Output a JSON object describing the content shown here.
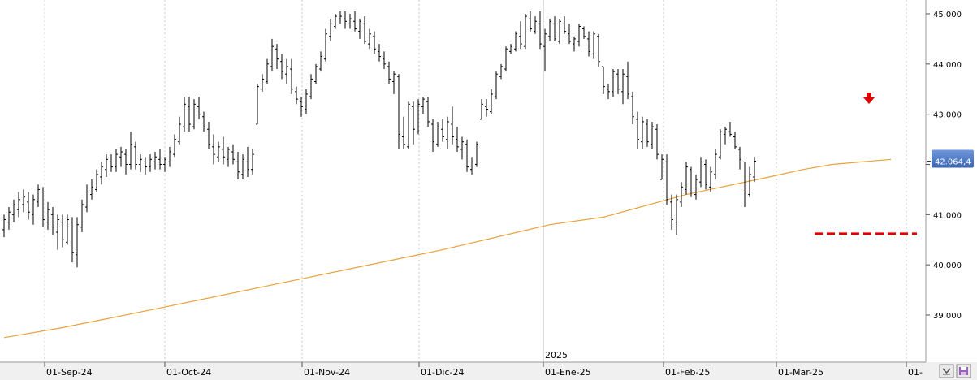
{
  "chart_data": {
    "type": "ohlc",
    "x_ticks": [
      "01-Sep-24",
      "01-Oct-24",
      "01-Nov-24",
      "01-Dic-24",
      "01-Ene-25",
      "01-Feb-25",
      "01-Mar-25",
      "01-"
    ],
    "year_label": "2025",
    "y_ticks": [
      "39.000",
      "40.000",
      "41.000",
      "42.000",
      "43.000",
      "44.000",
      "45.000"
    ],
    "ylim": [
      38500,
      45200
    ],
    "grid": "vertical dashed",
    "last_price_label": "42.064,4",
    "last_price": 42064.4,
    "support_level": 40620,
    "marker": "red down arrow above last swing high",
    "colors": {
      "bars": "#000000",
      "moving_average": "#e8a23a",
      "support_line": "#e00000",
      "arrow": "#e00000",
      "price_badge": "#3f6fc0"
    },
    "ohlc": [
      [
        40700,
        41000,
        40550,
        40900
      ],
      [
        40850,
        41150,
        40700,
        41050
      ],
      [
        41000,
        41300,
        40850,
        41200
      ],
      [
        41100,
        41450,
        40950,
        41300
      ],
      [
        41200,
        41500,
        41050,
        41350
      ],
      [
        41250,
        41450,
        40900,
        41050
      ],
      [
        41000,
        41400,
        40800,
        41300
      ],
      [
        41250,
        41600,
        41150,
        41500
      ],
      [
        41450,
        41550,
        40750,
        40900
      ],
      [
        40850,
        41250,
        40700,
        41100
      ],
      [
        41000,
        41150,
        40600,
        40750
      ],
      [
        40650,
        41000,
        40300,
        40900
      ],
      [
        40850,
        41000,
        40350,
        40500
      ],
      [
        40450,
        41000,
        40400,
        40900
      ],
      [
        40850,
        40950,
        40050,
        40250
      ],
      [
        40200,
        40950,
        39950,
        40800
      ],
      [
        40750,
        41300,
        40650,
        41200
      ],
      [
        41150,
        41600,
        41050,
        41450
      ],
      [
        41400,
        41700,
        41300,
        41550
      ],
      [
        41500,
        41900,
        41450,
        41800
      ],
      [
        41750,
        42050,
        41600,
        41950
      ],
      [
        41900,
        42200,
        41750,
        42100
      ],
      [
        42050,
        42200,
        41850,
        41950
      ],
      [
        41950,
        42300,
        41850,
        42200
      ],
      [
        42150,
        42350,
        41950,
        42250
      ],
      [
        42200,
        42300,
        41800,
        42000
      ],
      [
        42000,
        42650,
        41900,
        42400
      ],
      [
        42350,
        42450,
        41900,
        42000
      ],
      [
        42000,
        42200,
        41850,
        42100
      ],
      [
        42050,
        42150,
        41800,
        41950
      ],
      [
        41950,
        42200,
        41850,
        42100
      ],
      [
        42050,
        42250,
        41900,
        42150
      ],
      [
        42100,
        42300,
        41900,
        42000
      ],
      [
        42000,
        42150,
        41850,
        42100
      ],
      [
        42050,
        42350,
        41950,
        42250
      ],
      [
        42200,
        42600,
        42150,
        42500
      ],
      [
        42450,
        42950,
        42400,
        42800
      ],
      [
        42750,
        43350,
        42650,
        43200
      ],
      [
        43150,
        43350,
        42650,
        42800
      ],
      [
        42750,
        43300,
        42700,
        43200
      ],
      [
        43150,
        43350,
        42900,
        43000
      ],
      [
        42950,
        43050,
        42650,
        42750
      ],
      [
        42700,
        42850,
        42300,
        42400
      ],
      [
        42350,
        42600,
        42000,
        42200
      ],
      [
        42150,
        42450,
        42050,
        42350
      ],
      [
        42300,
        42550,
        42000,
        42150
      ],
      [
        42100,
        42350,
        41950,
        42300
      ],
      [
        42250,
        42400,
        42000,
        42100
      ],
      [
        42050,
        42250,
        41700,
        41850
      ],
      [
        41800,
        42200,
        41700,
        42100
      ],
      [
        42050,
        42350,
        41750,
        41900
      ],
      [
        41900,
        42300,
        41800,
        42200
      ],
      [
        42800,
        43600,
        42800,
        43550
      ],
      [
        43500,
        43800,
        43450,
        43700
      ],
      [
        43650,
        44100,
        43600,
        44000
      ],
      [
        43950,
        44500,
        43850,
        44350
      ],
      [
        44300,
        44400,
        43900,
        44100
      ],
      [
        44050,
        44200,
        43700,
        43850
      ],
      [
        43800,
        44100,
        43600,
        43950
      ],
      [
        43900,
        44100,
        43400,
        43500
      ],
      [
        43450,
        43550,
        43200,
        43300
      ],
      [
        43250,
        43350,
        42950,
        43150
      ],
      [
        43100,
        43500,
        43000,
        43400
      ],
      [
        43350,
        43800,
        43300,
        43700
      ],
      [
        43650,
        44000,
        43600,
        43950
      ],
      [
        43900,
        44250,
        43850,
        44150
      ],
      [
        44100,
        44700,
        44050,
        44600
      ],
      [
        44550,
        44900,
        44450,
        44800
      ],
      [
        44750,
        45000,
        44700,
        44950
      ],
      [
        44900,
        45050,
        44800,
        44950
      ],
      [
        44900,
        45050,
        44700,
        44850
      ],
      [
        44800,
        45000,
        44700,
        44900
      ],
      [
        44850,
        45050,
        44650,
        44700
      ],
      [
        44650,
        44900,
        44500,
        44850
      ],
      [
        44800,
        44950,
        44400,
        44450
      ],
      [
        44400,
        44700,
        44300,
        44600
      ],
      [
        44550,
        44650,
        44200,
        44300
      ],
      [
        44250,
        44400,
        44050,
        44150
      ],
      [
        44100,
        44250,
        43900,
        44000
      ],
      [
        43950,
        44050,
        43600,
        43700
      ],
      [
        43650,
        43850,
        43400,
        43800
      ],
      [
        43750,
        43800,
        42300,
        42600
      ],
      [
        42550,
        42950,
        42300,
        42400
      ],
      [
        42350,
        43250,
        42300,
        43200
      ],
      [
        43150,
        43250,
        42400,
        42700
      ],
      [
        42650,
        43300,
        42600,
        43200
      ],
      [
        43150,
        43350,
        43000,
        43300
      ],
      [
        43250,
        43350,
        42750,
        42850
      ],
      [
        42800,
        42900,
        42250,
        42450
      ],
      [
        42400,
        42850,
        42350,
        42750
      ],
      [
        42700,
        42900,
        42450,
        42550
      ],
      [
        42500,
        42950,
        42300,
        42850
      ],
      [
        42800,
        43150,
        42400,
        42550
      ],
      [
        42500,
        42750,
        42250,
        42350
      ],
      [
        42300,
        42550,
        42100,
        42450
      ],
      [
        42400,
        42500,
        41850,
        41950
      ],
      [
        41900,
        42150,
        41800,
        42050
      ],
      [
        42000,
        42450,
        41950,
        42400
      ],
      [
        42900,
        43300,
        42900,
        43200
      ],
      [
        43150,
        43300,
        42950,
        43100
      ],
      [
        43050,
        43500,
        43000,
        43400
      ],
      [
        43350,
        43850,
        43300,
        43800
      ],
      [
        43750,
        44000,
        43700,
        43950
      ],
      [
        43900,
        44350,
        43850,
        44300
      ],
      [
        44250,
        44400,
        44200,
        44350
      ],
      [
        44300,
        44650,
        44250,
        44600
      ],
      [
        44550,
        44850,
        44300,
        44400
      ],
      [
        44350,
        45000,
        44300,
        44950
      ],
      [
        44900,
        45050,
        44650,
        44700
      ],
      [
        44650,
        44950,
        44600,
        44850
      ],
      [
        44800,
        45050,
        44300,
        44400
      ],
      [
        44350,
        44700,
        43850,
        44600
      ],
      [
        44550,
        44900,
        44450,
        44850
      ],
      [
        44800,
        44950,
        44450,
        44500
      ],
      [
        44450,
        44900,
        44400,
        44850
      ],
      [
        44800,
        44950,
        44600,
        44650
      ],
      [
        44600,
        44800,
        44400,
        44450
      ],
      [
        44400,
        44550,
        44250,
        44500
      ],
      [
        44450,
        44800,
        44350,
        44750
      ],
      [
        44700,
        44750,
        44500,
        44550
      ],
      [
        44500,
        44650,
        44150,
        44250
      ],
      [
        44200,
        44650,
        44100,
        44600
      ],
      [
        44550,
        44600,
        43950,
        44050
      ],
      [
        43950,
        43950,
        43400,
        43550
      ],
      [
        43500,
        43600,
        43300,
        43450
      ],
      [
        43450,
        43900,
        43350,
        43850
      ],
      [
        43800,
        43900,
        43400,
        43500
      ],
      [
        43450,
        43900,
        43200,
        43800
      ],
      [
        43750,
        44050,
        43300,
        43400
      ],
      [
        43350,
        43450,
        42800,
        42950
      ],
      [
        42900,
        43050,
        42300,
        42500
      ],
      [
        42450,
        42950,
        42300,
        42850
      ],
      [
        42800,
        42900,
        42350,
        42450
      ],
      [
        42400,
        42850,
        42300,
        42750
      ],
      [
        42700,
        42800,
        42100,
        42200
      ],
      [
        41700,
        42200,
        41700,
        42100
      ],
      [
        42050,
        42200,
        41200,
        41300
      ],
      [
        41250,
        41400,
        40700,
        40900
      ],
      [
        40850,
        41400,
        40600,
        41300
      ],
      [
        41250,
        41650,
        41150,
        41550
      ],
      [
        41500,
        42050,
        41400,
        41950
      ],
      [
        41900,
        41950,
        41350,
        41450
      ],
      [
        41400,
        41800,
        41300,
        41700
      ],
      [
        41650,
        42150,
        41550,
        42050
      ],
      [
        42000,
        42100,
        41500,
        41600
      ],
      [
        41550,
        41950,
        41450,
        41850
      ],
      [
        41800,
        42300,
        41700,
        42200
      ],
      [
        42150,
        42700,
        42100,
        42650
      ],
      [
        42600,
        42750,
        42400,
        42700
      ],
      [
        42650,
        42850,
        42550,
        42600
      ],
      [
        42550,
        42650,
        42300,
        42350
      ],
      [
        42300,
        42350,
        41900,
        42100
      ],
      [
        42050,
        42050,
        41150,
        41450
      ],
      [
        41400,
        41950,
        41350,
        41800
      ],
      [
        41750,
        42150,
        41650,
        42064.4
      ]
    ],
    "moving_average": [
      [
        0,
        38550
      ],
      [
        12,
        38750
      ],
      [
        30,
        39100
      ],
      [
        60,
        39700
      ],
      [
        90,
        40300
      ],
      [
        112,
        40800
      ],
      [
        123,
        40950
      ],
      [
        140,
        41400
      ],
      [
        157,
        41750
      ],
      [
        164,
        41900
      ],
      [
        170,
        42000
      ],
      [
        182,
        42100
      ]
    ]
  }
}
